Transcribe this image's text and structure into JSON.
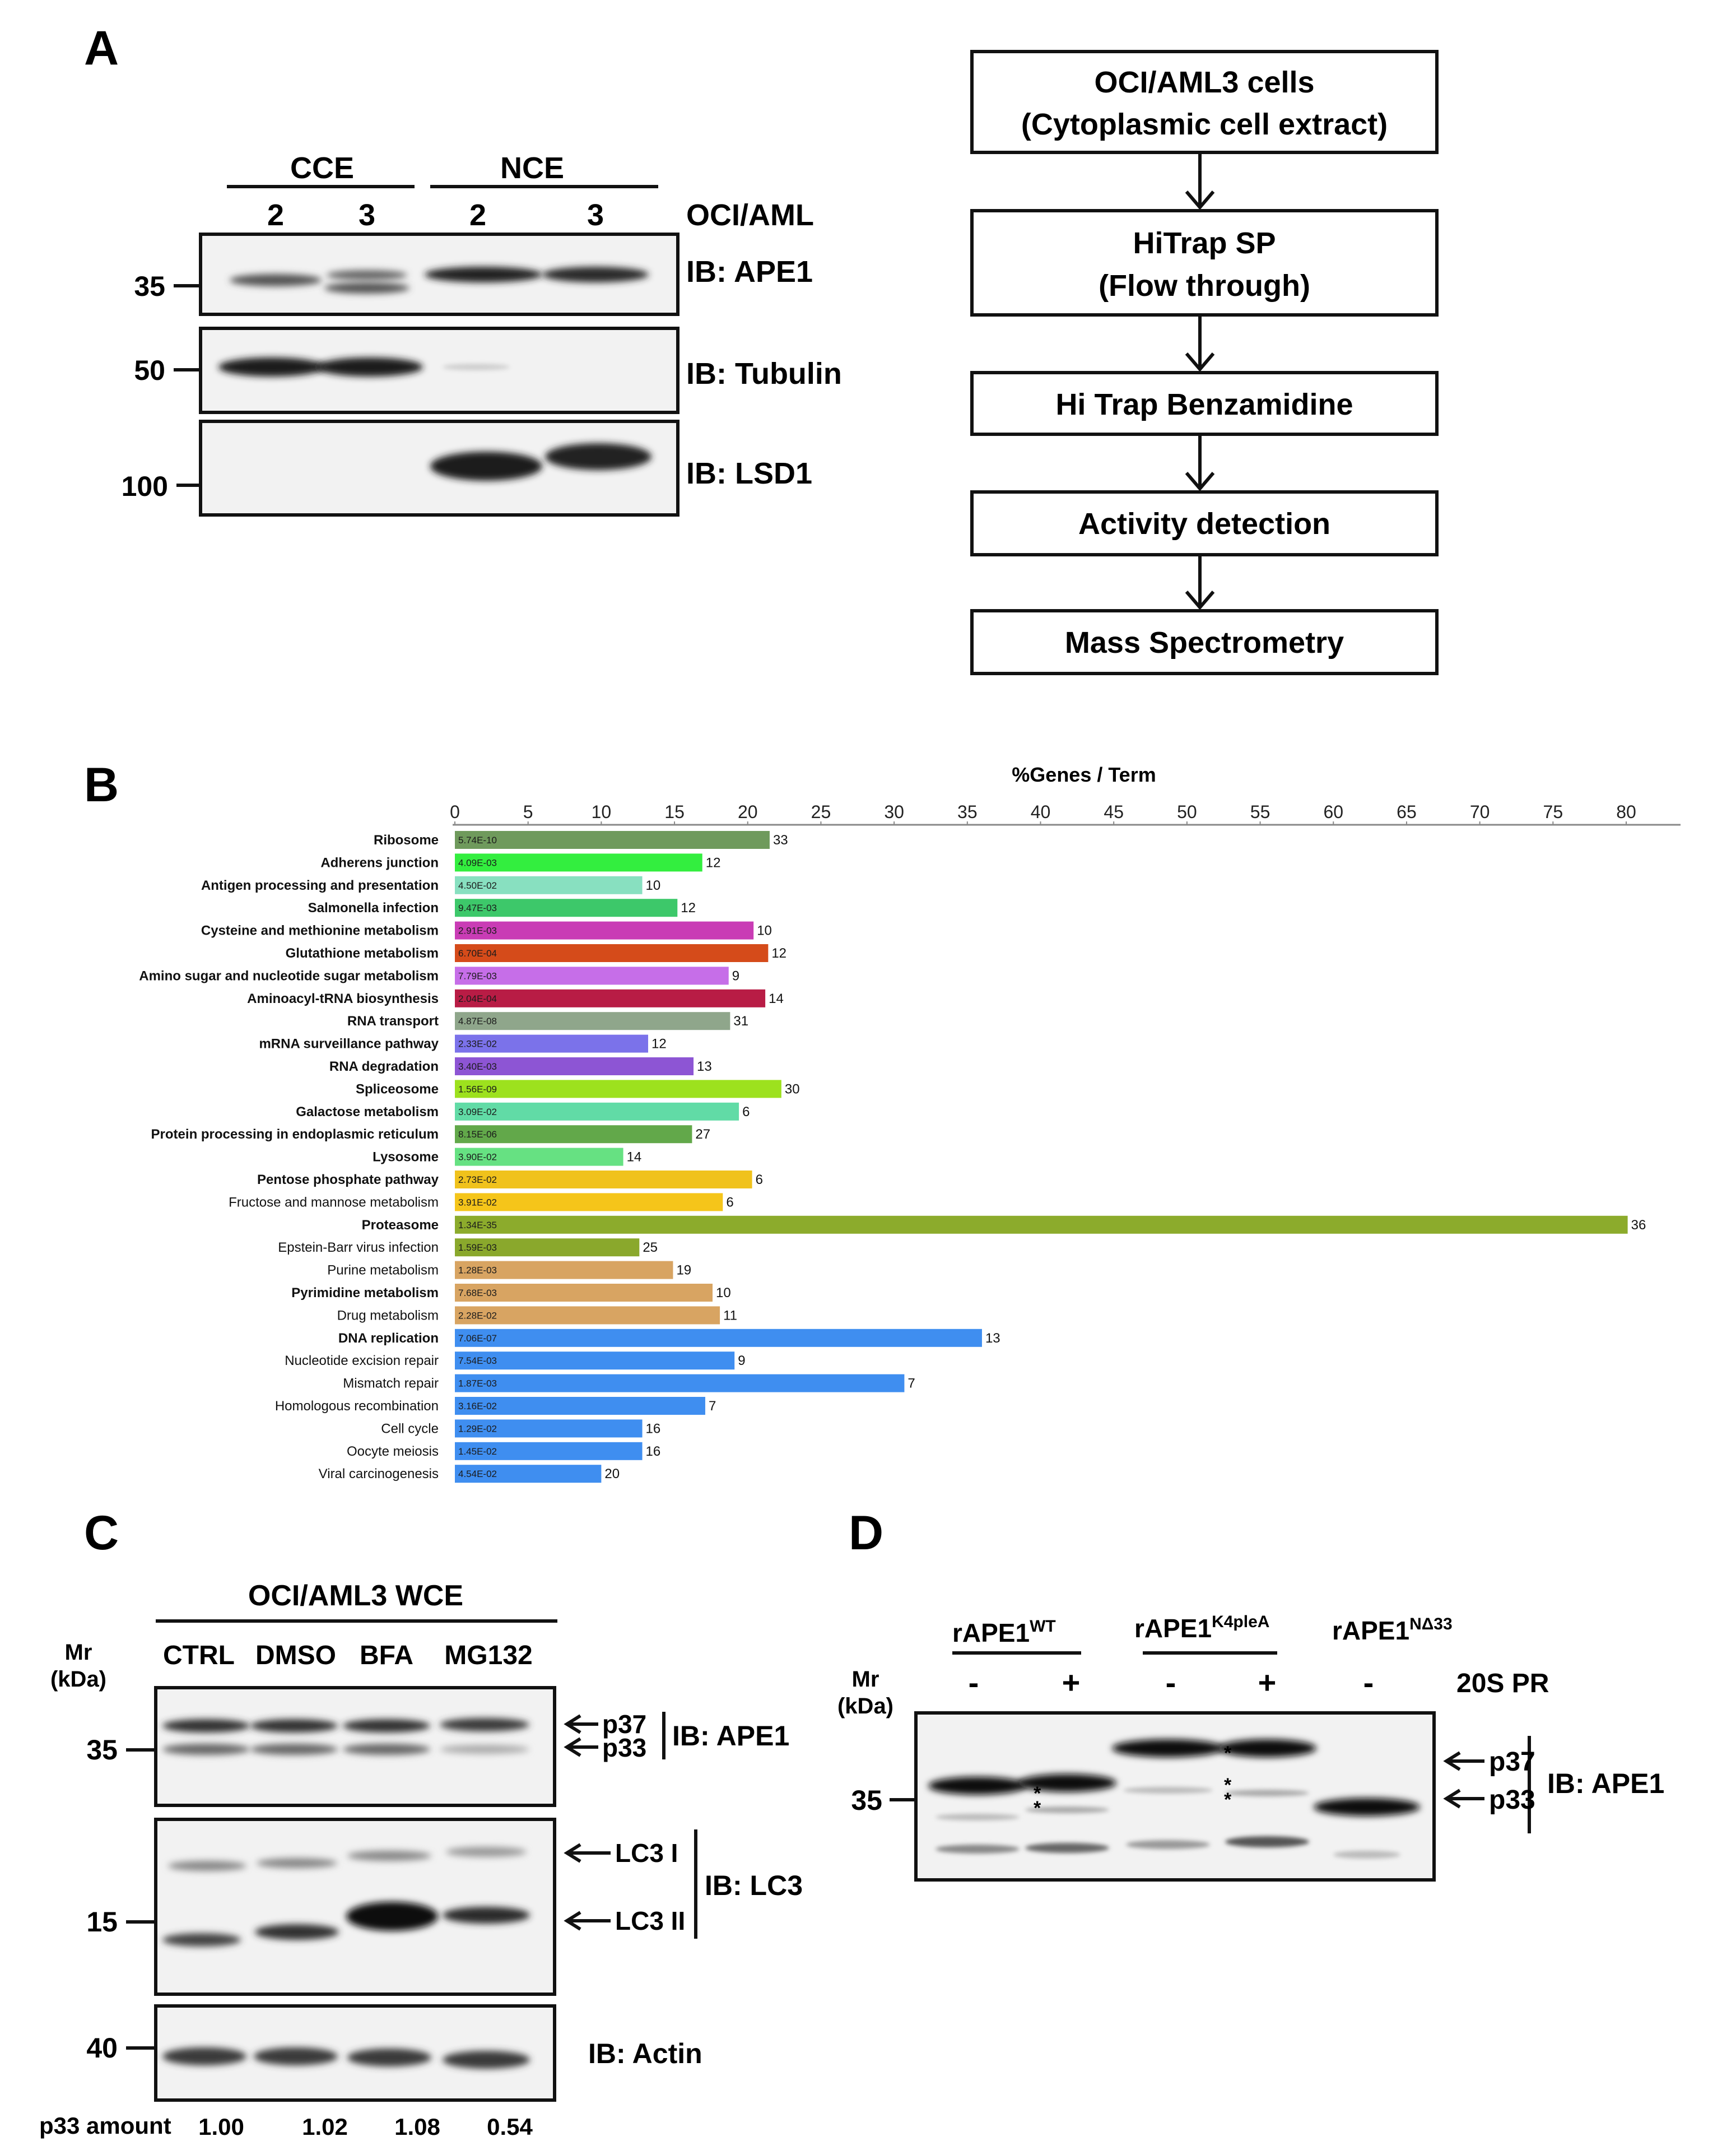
{
  "panels": {
    "A": "A",
    "B": "B",
    "C": "C",
    "D": "D"
  },
  "panelA": {
    "groups": [
      "CCE",
      "NCE"
    ],
    "lanes": [
      "2",
      "3",
      "2",
      "3"
    ],
    "lane_header": "OCI/AML",
    "blots": [
      {
        "marker": "35",
        "label": "IB: APE1"
      },
      {
        "marker": "50",
        "label": "IB: Tubulin"
      },
      {
        "marker": "100",
        "label": "IB: LSD1"
      }
    ],
    "flow": [
      {
        "line1": "OCI/AML3 cells",
        "line2": "(Cytoplasmic cell extract)"
      },
      {
        "line1": "HiTrap SP",
        "line2": "(Flow through)"
      },
      {
        "line1": "Hi Trap Benzamidine",
        "line2": ""
      },
      {
        "line1": "Activity detection",
        "line2": ""
      },
      {
        "line1": "Mass Spectrometry",
        "line2": ""
      }
    ]
  },
  "chart_data": {
    "type": "bar",
    "orientation": "horizontal",
    "title": "%Genes / Term",
    "xlabel": "%Genes / Term",
    "xlim": [
      0,
      80
    ],
    "xticks": [
      0,
      5,
      10,
      15,
      20,
      25,
      30,
      35,
      40,
      45,
      50,
      55,
      60,
      65,
      70,
      75,
      80
    ],
    "categories": [
      "Ribosome",
      "Adherens junction",
      "Antigen processing and presentation",
      "Salmonella infection",
      "Cysteine and methionine metabolism",
      "Glutathione metabolism",
      "Amino sugar and nucleotide sugar metabolism",
      "Aminoacyl-tRNA biosynthesis",
      "RNA transport",
      "mRNA surveillance pathway",
      "RNA degradation",
      "Spliceosome",
      "Galactose metabolism",
      "Protein processing in endoplasmic reticulum",
      "Lysosome",
      "Pentose phosphate pathway",
      "Fructose and mannose metabolism",
      "Proteasome",
      "Epstein-Barr virus infection",
      "Purine metabolism",
      "Pyrimidine metabolism",
      "Drug metabolism",
      "DNA replication",
      "Nucleotide excision repair",
      "Mismatch repair",
      "Homologous recombination",
      "Cell cycle",
      "Oocyte meiosis",
      "Viral carcinogenesis"
    ],
    "bold": [
      true,
      true,
      true,
      true,
      true,
      true,
      true,
      true,
      true,
      true,
      true,
      true,
      true,
      true,
      true,
      true,
      false,
      true,
      false,
      false,
      true,
      false,
      true,
      false,
      false,
      false,
      false,
      false,
      false
    ],
    "values": [
      21.5,
      16.9,
      12.8,
      15.2,
      20.4,
      21.4,
      18.7,
      21.2,
      18.8,
      13.2,
      16.3,
      22.3,
      19.4,
      16.2,
      11.5,
      20.3,
      18.3,
      80.1,
      12.6,
      14.9,
      17.6,
      18.1,
      36.0,
      19.1,
      30.7,
      17.1,
      12.8,
      12.8,
      10.0
    ],
    "gene_counts": [
      "33",
      "12",
      "10",
      "12",
      "10",
      "12",
      "9",
      "14",
      "31",
      "12",
      "13",
      "30",
      "6",
      "27",
      "14",
      "6",
      "6",
      "36",
      "25",
      "19",
      "10",
      "11",
      "13",
      "9",
      "7",
      "7",
      "16",
      "16",
      "20"
    ],
    "pvalues": [
      "5.74E-10",
      "4.09E-03",
      "4.50E-02",
      "9.47E-03",
      "2.91E-03",
      "6.70E-04",
      "7.79E-03",
      "2.04E-04",
      "4.87E-08",
      "2.33E-02",
      "3.40E-03",
      "1.56E-09",
      "3.09E-02",
      "8.15E-06",
      "3.90E-02",
      "2.73E-02",
      "3.91E-02",
      "1.34E-35",
      "1.59E-03",
      "1.28E-03",
      "7.68E-03",
      "2.28E-02",
      "7.06E-07",
      "7.54E-03",
      "1.87E-03",
      "3.16E-02",
      "1.29E-02",
      "1.45E-02",
      "4.54E-02"
    ],
    "colors": [
      "#6f9a5c",
      "#33ee3f",
      "#88e0c0",
      "#3dc86a",
      "#c93cb5",
      "#d54b1a",
      "#c66ee8",
      "#b81c45",
      "#8fa68b",
      "#7b72ea",
      "#8d55d4",
      "#9de11e",
      "#61dba6",
      "#62a84a",
      "#66e182",
      "#f0c21c",
      "#f5c51a",
      "#8cab2c",
      "#8aa82c",
      "#d8a462",
      "#d8a462",
      "#d8a462",
      "#3f8ef0",
      "#3f8ef0",
      "#3f8ef0",
      "#3f8ef0",
      "#3f8ef0",
      "#3f8ef0",
      "#3f8ef0"
    ]
  },
  "panelC": {
    "title": "OCI/AML3 WCE",
    "mr": "Mr",
    "kda": "(kDa)",
    "lanes": [
      "CTRL",
      "DMSO",
      "BFA",
      "MG132"
    ],
    "markers": [
      "35",
      "15",
      "40"
    ],
    "arrows": [
      "p37",
      "p33",
      "LC3 I",
      "LC3 II"
    ],
    "blots": [
      "IB: APE1",
      "IB: LC3",
      "IB: Actin"
    ],
    "quant_label": "p33 amount",
    "quant": [
      "1.00",
      "1.02",
      "1.08",
      "0.54"
    ]
  },
  "panelD": {
    "proteins": [
      {
        "name": "rAPE1",
        "sup": "WT"
      },
      {
        "name": "rAPE1",
        "sup": "K4pleA"
      },
      {
        "name": "rAPE1",
        "sup": "NΔ33"
      }
    ],
    "mr": "Mr",
    "kda": "(kDa)",
    "signs": [
      "-",
      "+",
      "-",
      "+",
      "-"
    ],
    "treatment": "20S PR",
    "marker": "35",
    "arrows": [
      "p37",
      "p33"
    ],
    "blot": "IB: APE1",
    "stars": [
      "*",
      "*",
      "*",
      "*",
      "*"
    ]
  }
}
